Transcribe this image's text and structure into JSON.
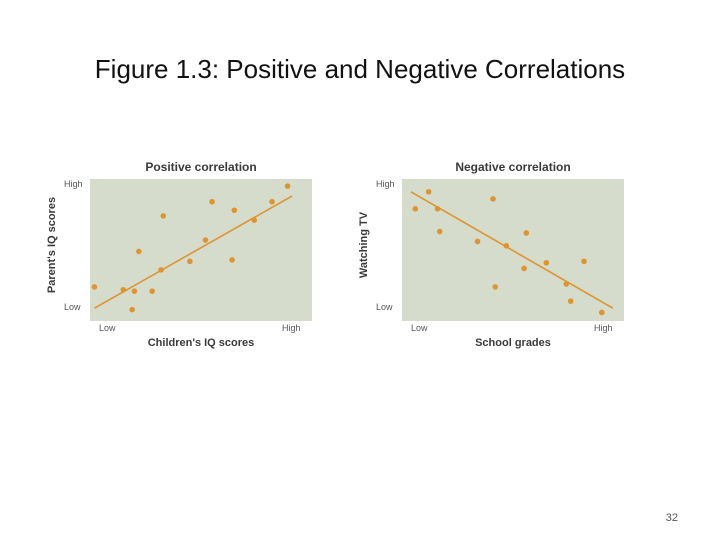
{
  "slide": {
    "title": "Figure 1.3: Positive and Negative Correlations",
    "page_number": "32"
  },
  "colors": {
    "plot_background": "#d5dccb",
    "marker": "#dd9433",
    "trend_line": "#dd9433"
  },
  "chart_data": [
    {
      "type": "scatter",
      "title": "Positive correlation",
      "xlabel": "Children's IQ scores",
      "ylabel": "Parent's IQ scores",
      "x_ticks": {
        "low": "Low",
        "high": "High"
      },
      "y_ticks": {
        "low": "Low",
        "high": "High"
      },
      "xlim": [
        0,
        10
      ],
      "ylim": [
        0,
        10
      ],
      "grid": false,
      "points": [
        {
          "x": 0.2,
          "y": 2.4
        },
        {
          "x": 1.5,
          "y": 2.2
        },
        {
          "x": 1.9,
          "y": 0.8
        },
        {
          "x": 2.0,
          "y": 2.1
        },
        {
          "x": 2.2,
          "y": 4.9
        },
        {
          "x": 2.8,
          "y": 2.1
        },
        {
          "x": 3.2,
          "y": 3.6
        },
        {
          "x": 3.3,
          "y": 7.4
        },
        {
          "x": 4.5,
          "y": 4.2
        },
        {
          "x": 5.2,
          "y": 5.7
        },
        {
          "x": 5.5,
          "y": 8.4
        },
        {
          "x": 6.4,
          "y": 4.3
        },
        {
          "x": 6.5,
          "y": 7.8
        },
        {
          "x": 7.4,
          "y": 7.1
        },
        {
          "x": 8.2,
          "y": 8.4
        },
        {
          "x": 8.9,
          "y": 9.5
        }
      ],
      "trend_line": [
        {
          "x": 0.2,
          "y": 0.9
        },
        {
          "x": 9.1,
          "y": 8.8
        }
      ]
    },
    {
      "type": "scatter",
      "title": "Negative correlation",
      "xlabel": "School grades",
      "ylabel": "Watching TV",
      "x_ticks": {
        "low": "Low",
        "high": "High"
      },
      "y_ticks": {
        "low": "Low",
        "high": "High"
      },
      "xlim": [
        0,
        10
      ],
      "ylim": [
        0,
        10
      ],
      "grid": false,
      "points": [
        {
          "x": 0.6,
          "y": 7.9
        },
        {
          "x": 1.2,
          "y": 9.1
        },
        {
          "x": 1.6,
          "y": 7.9
        },
        {
          "x": 1.7,
          "y": 6.3
        },
        {
          "x": 3.4,
          "y": 5.6
        },
        {
          "x": 4.1,
          "y": 8.6
        },
        {
          "x": 4.2,
          "y": 2.4
        },
        {
          "x": 4.7,
          "y": 5.3
        },
        {
          "x": 5.5,
          "y": 3.7
        },
        {
          "x": 5.6,
          "y": 6.2
        },
        {
          "x": 6.5,
          "y": 4.1
        },
        {
          "x": 7.4,
          "y": 2.6
        },
        {
          "x": 7.6,
          "y": 1.4
        },
        {
          "x": 8.2,
          "y": 4.2
        },
        {
          "x": 9.0,
          "y": 0.6
        }
      ],
      "trend_line": [
        {
          "x": 0.4,
          "y": 9.1
        },
        {
          "x": 9.5,
          "y": 0.9
        }
      ]
    }
  ]
}
